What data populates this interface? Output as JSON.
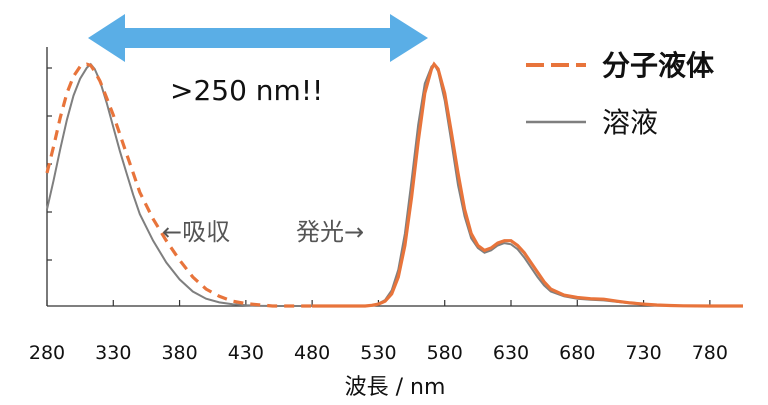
{
  "chart_data": {
    "type": "line",
    "xlabel": "波長 / nm",
    "ylabel": "",
    "xlim": [
      280,
      805
    ],
    "ylim": [
      0,
      1.1
    ],
    "x_ticks": [
      280,
      330,
      380,
      430,
      480,
      530,
      580,
      630,
      680,
      730,
      780
    ],
    "grid": false,
    "legend_position": "top-right",
    "colors": {
      "molecular_liquid": "#E8743B",
      "solution": "#7f7f7f",
      "arrow": "#5AAEE6"
    },
    "series": [
      {
        "name": "分子液体",
        "style": "dashed-thick",
        "color": "#E8743B",
        "x": [
          280,
          285,
          290,
          295,
          300,
          305,
          310,
          313,
          316,
          320,
          325,
          330,
          335,
          340,
          345,
          350,
          360,
          370,
          380,
          390,
          400,
          410,
          420,
          430,
          440,
          450,
          460,
          470,
          480,
          490,
          500,
          510,
          520,
          525,
          530,
          535,
          540,
          545,
          550,
          555,
          560,
          565,
          570,
          572,
          575,
          580,
          585,
          590,
          595,
          600,
          605,
          610,
          615,
          620,
          625,
          630,
          635,
          640,
          645,
          650,
          655,
          660,
          670,
          680,
          690,
          700,
          710,
          720,
          730,
          740,
          750,
          760,
          780,
          805
        ],
        "y": [
          0.55,
          0.66,
          0.78,
          0.88,
          0.95,
          0.99,
          1.0,
          0.995,
          0.97,
          0.93,
          0.86,
          0.79,
          0.71,
          0.63,
          0.55,
          0.47,
          0.36,
          0.27,
          0.19,
          0.12,
          0.07,
          0.04,
          0.02,
          0.01,
          0.005,
          0,
          0,
          0,
          0,
          0,
          0,
          0,
          0,
          0.003,
          0.008,
          0.02,
          0.05,
          0.12,
          0.25,
          0.45,
          0.68,
          0.88,
          0.98,
          1.0,
          0.98,
          0.88,
          0.72,
          0.55,
          0.4,
          0.3,
          0.25,
          0.23,
          0.24,
          0.26,
          0.27,
          0.27,
          0.25,
          0.22,
          0.18,
          0.14,
          0.1,
          0.07,
          0.045,
          0.035,
          0.03,
          0.028,
          0.02,
          0.013,
          0.008,
          0.004,
          0.002,
          0.001,
          0,
          0
        ]
      },
      {
        "name": "溶液",
        "style": "solid-thin",
        "color": "#7f7f7f",
        "x": [
          280,
          285,
          290,
          295,
          300,
          305,
          310,
          313,
          316,
          320,
          325,
          330,
          335,
          340,
          345,
          350,
          360,
          370,
          380,
          390,
          400,
          410,
          420,
          430,
          440,
          450,
          460,
          470,
          480,
          490,
          500,
          510,
          520,
          525,
          530,
          535,
          540,
          545,
          550,
          555,
          560,
          565,
          570,
          572,
          575,
          580,
          585,
          590,
          595,
          600,
          605,
          610,
          615,
          620,
          625,
          630,
          635,
          640,
          645,
          650,
          655,
          660,
          670,
          680,
          690,
          700,
          710,
          720,
          730,
          740,
          750,
          760,
          780,
          805
        ],
        "y": [
          0.4,
          0.52,
          0.65,
          0.77,
          0.87,
          0.94,
          0.985,
          1.0,
          0.98,
          0.93,
          0.84,
          0.74,
          0.64,
          0.55,
          0.46,
          0.38,
          0.27,
          0.18,
          0.11,
          0.06,
          0.03,
          0.015,
          0.007,
          0.003,
          0.001,
          0,
          0,
          0,
          0,
          0,
          0,
          0,
          0,
          0.003,
          0.01,
          0.025,
          0.065,
          0.15,
          0.3,
          0.52,
          0.75,
          0.92,
          0.99,
          1.0,
          0.97,
          0.85,
          0.68,
          0.5,
          0.37,
          0.28,
          0.24,
          0.22,
          0.23,
          0.25,
          0.26,
          0.255,
          0.235,
          0.2,
          0.16,
          0.12,
          0.085,
          0.06,
          0.04,
          0.03,
          0.026,
          0.023,
          0.017,
          0.011,
          0.007,
          0.004,
          0.002,
          0.001,
          0,
          0
        ]
      }
    ],
    "annotations": {
      "gap_label": ">250 nm!!",
      "absorption_label": "←吸収",
      "emission_label": "発光→"
    }
  }
}
